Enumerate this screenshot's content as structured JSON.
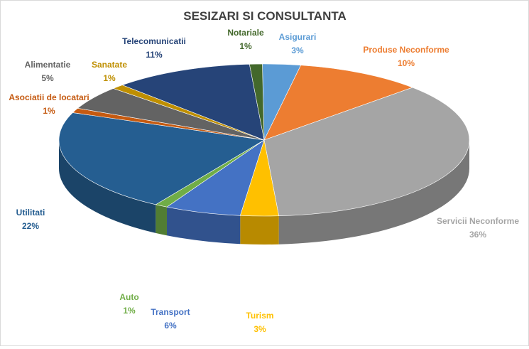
{
  "chart_data": {
    "type": "pie",
    "title": "SESIZARI SI CONSULTANTA",
    "slices": [
      {
        "label": "Asigurari",
        "value": 3,
        "display": "3%",
        "color": "#5B9BD5"
      },
      {
        "label": "Produse Neconforme",
        "value": 10,
        "display": "10%",
        "color": "#ED7D31"
      },
      {
        "label": "Servicii Neconforme",
        "value": 36,
        "display": "36%",
        "color": "#A5A5A5"
      },
      {
        "label": "Turism",
        "value": 3,
        "display": "3%",
        "color": "#FFC000"
      },
      {
        "label": "Transport",
        "value": 6,
        "display": "6%",
        "color": "#4472C4"
      },
      {
        "label": "Auto",
        "value": 1,
        "display": "1%",
        "color": "#70AD47"
      },
      {
        "label": "Utilitati",
        "value": 22,
        "display": "22%",
        "color": "#255E91"
      },
      {
        "label": "Asociatii de locatari",
        "value": 1,
        "display": "1%",
        "color": "#C55A11"
      },
      {
        "label": "Alimentatie",
        "value": 5,
        "display": "5%",
        "color": "#636363"
      },
      {
        "label": "Sanatate",
        "value": 1,
        "display": "1%",
        "color": "#BF8F00"
      },
      {
        "label": "Telecomunicatii",
        "value": 11,
        "display": "11%",
        "color": "#264478"
      },
      {
        "label": "Notariale",
        "value": 1,
        "display": "1%",
        "color": "#43682B"
      }
    ]
  }
}
